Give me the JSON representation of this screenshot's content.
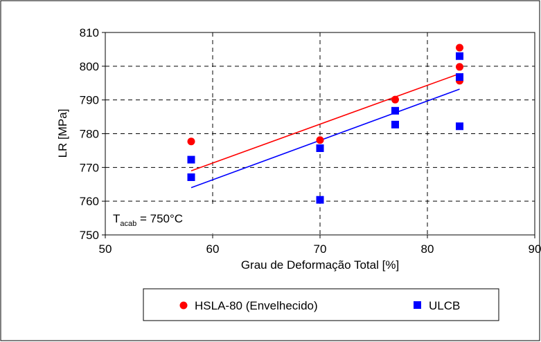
{
  "chart_data": {
    "type": "scatter",
    "title": "",
    "xlabel": "Grau de Deformação Total [%]",
    "ylabel": "LR [MPa]",
    "xlim": [
      50,
      90
    ],
    "ylim": [
      750,
      810
    ],
    "x_ticks": [
      50,
      60,
      70,
      80,
      90
    ],
    "y_ticks": [
      750,
      760,
      770,
      780,
      790,
      800,
      810
    ],
    "x_tick_labels": [
      "50",
      "60",
      "70",
      "80",
      "90"
    ],
    "y_tick_labels": [
      "750",
      "760",
      "770",
      "780",
      "790",
      "800",
      "810"
    ],
    "grid": true,
    "legend_position": "bottom",
    "annotation": {
      "base": "T",
      "subscript": "acab",
      "rest": " = 750°C"
    },
    "series": [
      {
        "name": "HSLA-80 (Envelhecido)",
        "marker": "circle",
        "color": "#ff0000",
        "points": [
          {
            "x": 58,
            "y": 777.7
          },
          {
            "x": 70,
            "y": 778.1
          },
          {
            "x": 77,
            "y": 790.1
          },
          {
            "x": 83,
            "y": 805.5
          },
          {
            "x": 83,
            "y": 799.8
          },
          {
            "x": 83,
            "y": 795.7
          }
        ],
        "trendline": {
          "x": [
            58,
            83
          ],
          "y": [
            769.0,
            797.8
          ]
        }
      },
      {
        "name": "ULCB",
        "marker": "square",
        "color": "#0000ff",
        "points": [
          {
            "x": 58,
            "y": 772.3
          },
          {
            "x": 58,
            "y": 767.1
          },
          {
            "x": 70,
            "y": 775.7
          },
          {
            "x": 70,
            "y": 760.4
          },
          {
            "x": 77,
            "y": 786.8
          },
          {
            "x": 77,
            "y": 782.7
          },
          {
            "x": 83,
            "y": 803.0
          },
          {
            "x": 83,
            "y": 796.8
          },
          {
            "x": 83,
            "y": 782.2
          }
        ],
        "trendline": {
          "x": [
            58,
            83
          ],
          "y": [
            764.0,
            793.2
          ]
        }
      }
    ]
  }
}
